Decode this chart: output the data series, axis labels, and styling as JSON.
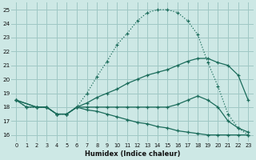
{
  "xlabel": "Humidex (Indice chaleur)",
  "bg_color": "#cde8e5",
  "grid_color": "#9fc8c4",
  "line_color": "#1a6b5a",
  "xlim": [
    -0.5,
    23.5
  ],
  "ylim": [
    15.5,
    25.5
  ],
  "xticks": [
    0,
    1,
    2,
    3,
    4,
    5,
    6,
    7,
    8,
    9,
    10,
    11,
    12,
    13,
    14,
    15,
    16,
    17,
    18,
    19,
    20,
    21,
    22,
    23
  ],
  "yticks": [
    16,
    17,
    18,
    19,
    20,
    21,
    22,
    23,
    24,
    25
  ],
  "line1_x": [
    0,
    1,
    2,
    3,
    4,
    5,
    6,
    7,
    8,
    9,
    10,
    11,
    12,
    13,
    14,
    15,
    16,
    17,
    18,
    19,
    20,
    21,
    22,
    23
  ],
  "line1_y": [
    18.5,
    18.0,
    18.0,
    18.0,
    17.5,
    17.5,
    18.0,
    19.0,
    20.2,
    21.3,
    22.5,
    23.3,
    24.2,
    24.8,
    25.0,
    25.0,
    24.8,
    24.2,
    23.2,
    21.2,
    19.5,
    17.5,
    16.5,
    16.0
  ],
  "line2_x": [
    0,
    1,
    2,
    3,
    4,
    5,
    6,
    7,
    8,
    9,
    10,
    11,
    12,
    13,
    14,
    15,
    16,
    17,
    18,
    19,
    20,
    21,
    22,
    23
  ],
  "line2_y": [
    18.5,
    18.0,
    18.0,
    18.0,
    17.5,
    17.5,
    18.0,
    18.3,
    18.7,
    19.0,
    19.3,
    19.7,
    20.0,
    20.3,
    20.5,
    20.7,
    21.0,
    21.3,
    21.5,
    21.5,
    21.2,
    21.0,
    20.3,
    18.5
  ],
  "line3_x": [
    0,
    2,
    3,
    4,
    5,
    6,
    7,
    8,
    9,
    10,
    11,
    12,
    13,
    14,
    15,
    16,
    17,
    18,
    19,
    20,
    21,
    22,
    23
  ],
  "line3_y": [
    18.5,
    18.0,
    18.0,
    17.5,
    17.5,
    18.0,
    18.0,
    18.0,
    18.0,
    18.0,
    18.0,
    18.0,
    18.0,
    18.0,
    18.0,
    18.2,
    18.5,
    18.8,
    18.5,
    18.0,
    17.0,
    16.5,
    16.2
  ],
  "line4_x": [
    0,
    2,
    3,
    4,
    5,
    6,
    7,
    8,
    9,
    10,
    11,
    12,
    13,
    14,
    15,
    16,
    17,
    18,
    19,
    20,
    21,
    22,
    23
  ],
  "line4_y": [
    18.5,
    18.0,
    18.0,
    17.5,
    17.5,
    18.0,
    17.8,
    17.7,
    17.5,
    17.3,
    17.1,
    16.9,
    16.8,
    16.6,
    16.5,
    16.3,
    16.2,
    16.1,
    16.0,
    16.0,
    16.0,
    16.0,
    16.0
  ]
}
